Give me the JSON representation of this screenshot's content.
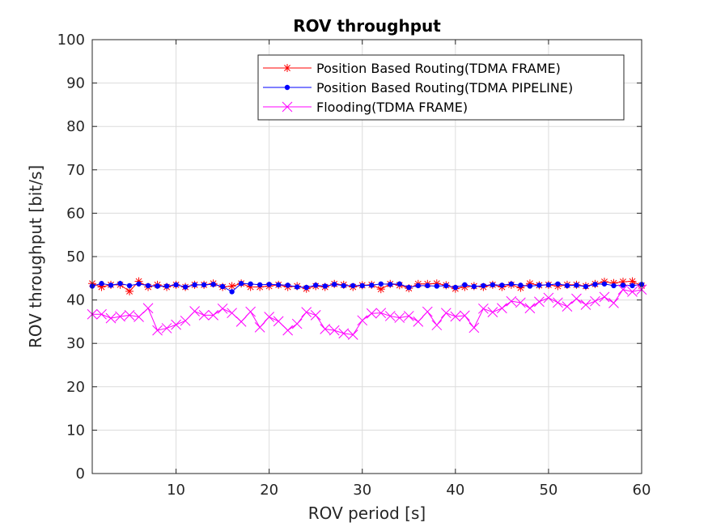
{
  "chart_data": {
    "type": "line",
    "title": "ROV throughput",
    "xlabel": "ROV period [s]",
    "ylabel": "ROV throughput [bit/s]",
    "xlim": [
      1,
      60
    ],
    "ylim": [
      0,
      100
    ],
    "xticks": [
      10,
      20,
      30,
      40,
      50,
      60
    ],
    "yticks": [
      0,
      10,
      20,
      30,
      40,
      50,
      60,
      70,
      80,
      90,
      100
    ],
    "grid": true,
    "legend_position": "top-right",
    "x": [
      1,
      2,
      3,
      4,
      5,
      6,
      7,
      8,
      9,
      10,
      11,
      12,
      13,
      14,
      15,
      16,
      17,
      18,
      19,
      20,
      21,
      22,
      23,
      24,
      25,
      26,
      27,
      28,
      29,
      30,
      31,
      32,
      33,
      34,
      35,
      36,
      37,
      38,
      39,
      40,
      41,
      42,
      43,
      44,
      45,
      46,
      47,
      48,
      49,
      50,
      51,
      52,
      53,
      54,
      55,
      56,
      57,
      58,
      59,
      60
    ],
    "series": [
      {
        "name": "Position Based Routing(TDMA FRAME)",
        "color": "#ff0000",
        "marker": "asterisk",
        "values": [
          43.8,
          43.0,
          43.5,
          43.5,
          42.0,
          44.3,
          43.0,
          43.5,
          43.0,
          43.5,
          43.0,
          43.5,
          43.5,
          43.8,
          43.0,
          43.2,
          43.8,
          43.0,
          43.0,
          43.2,
          43.5,
          43.0,
          43.2,
          42.6,
          43.2,
          43.0,
          43.7,
          43.5,
          43.0,
          43.4,
          43.5,
          42.5,
          43.7,
          43.4,
          42.7,
          43.7,
          43.7,
          43.8,
          43.4,
          42.6,
          43.0,
          43.2,
          43.0,
          43.5,
          43.0,
          43.5,
          42.8,
          43.8,
          43.4,
          43.5,
          43.2,
          43.5,
          43.5,
          43.2,
          43.7,
          44.2,
          43.9,
          44.2,
          44.3,
          43.3
        ]
      },
      {
        "name": "Position Based Routing(TDMA PIPELINE)",
        "color": "#0000ff",
        "marker": "dot",
        "values": [
          43.2,
          43.8,
          43.4,
          43.8,
          43.3,
          43.7,
          43.3,
          43.2,
          43.2,
          43.5,
          43.0,
          43.5,
          43.5,
          43.6,
          43.1,
          41.9,
          43.8,
          43.7,
          43.5,
          43.6,
          43.5,
          43.4,
          43.0,
          42.9,
          43.4,
          43.2,
          43.6,
          43.3,
          43.3,
          43.3,
          43.4,
          43.7,
          43.6,
          43.7,
          42.9,
          43.3,
          43.3,
          43.2,
          43.3,
          42.9,
          43.5,
          43.1,
          43.3,
          43.5,
          43.4,
          43.7,
          43.4,
          43.2,
          43.4,
          43.5,
          43.7,
          43.3,
          43.4,
          43.1,
          43.6,
          43.7,
          43.3,
          43.4,
          43.3,
          43.6
        ]
      },
      {
        "name": "Flooding(TDMA FRAME)",
        "color": "#ff00ff",
        "marker": "x",
        "values": [
          36.7,
          36.7,
          35.8,
          36.2,
          36.5,
          36.1,
          38.1,
          33.0,
          33.5,
          34.3,
          35.2,
          37.4,
          36.5,
          36.5,
          38.0,
          37.0,
          35.0,
          37.3,
          33.7,
          36.1,
          35.1,
          33.0,
          34.5,
          37.2,
          36.5,
          33.3,
          33.0,
          32.3,
          32.0,
          35.3,
          36.9,
          37.0,
          36.3,
          35.9,
          36.3,
          35.0,
          37.3,
          34.2,
          37.0,
          36.2,
          36.4,
          33.6,
          38.0,
          37.2,
          38.1,
          39.7,
          39.4,
          38.1,
          39.6,
          40.5,
          39.4,
          38.5,
          40.3,
          38.9,
          39.7,
          40.7,
          39.3,
          42.4,
          41.9,
          42.4
        ]
      }
    ]
  }
}
